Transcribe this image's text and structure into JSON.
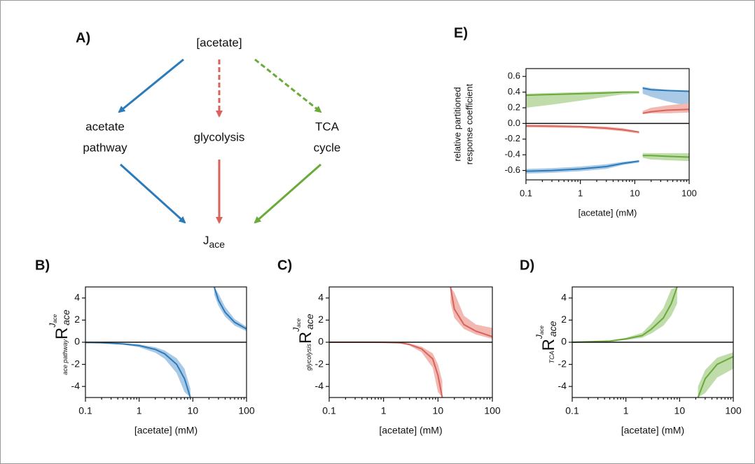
{
  "diagram": {
    "panel": "A)",
    "nodes": [
      {
        "label": "[acetate]"
      },
      {
        "lines": [
          "acetate",
          "pathway"
        ]
      },
      {
        "label": "glycolysis"
      },
      {
        "lines": [
          "TCA",
          "cycle"
        ]
      },
      {
        "label": "J",
        "subscript": "ace"
      }
    ]
  },
  "chart_data": [
    {
      "type": "line",
      "panel": "E)",
      "xscale": "log",
      "xlim": [
        0.1,
        100
      ],
      "xticks": [
        0.1,
        1,
        10,
        100
      ],
      "ylim": [
        -0.72,
        0.7
      ],
      "yticks": [
        -0.6,
        -0.4,
        -0.2,
        {
          "value": 0,
          "label": "0.0"
        },
        0.2,
        0.4,
        0.6
      ],
      "xlabel": "[acetate] (mM)",
      "ylabel": [
        "relative partitioned",
        "response coefficient"
      ],
      "zero_line": true,
      "x": [
        0.1,
        0.3,
        1,
        3,
        6,
        12,
        13,
        14,
        20,
        40,
        100
      ],
      "series": [
        {
          "color": "#2b7bba",
          "band_color": "#a9c9e6",
          "values": [
            -0.61,
            -0.6,
            -0.58,
            -0.55,
            -0.51,
            -0.48,
            null,
            0.45,
            0.43,
            0.42,
            0.41
          ],
          "lower": [
            -0.64,
            -0.63,
            -0.61,
            -0.58,
            -0.53,
            -0.5,
            null,
            0.38,
            0.34,
            0.28,
            0.22
          ],
          "upper": [
            -0.58,
            -0.57,
            -0.55,
            -0.52,
            -0.49,
            -0.47,
            null,
            0.47,
            0.45,
            0.43,
            0.42
          ]
        },
        {
          "color": "#d8635a",
          "band_color": "#f2b8b2",
          "values": [
            -0.03,
            -0.035,
            -0.04,
            -0.06,
            -0.08,
            -0.11,
            null,
            0.13,
            0.15,
            0.17,
            0.18
          ],
          "lower": [
            -0.05,
            -0.055,
            -0.06,
            -0.08,
            -0.1,
            -0.13,
            null,
            0.12,
            0.13,
            0.13,
            0.14
          ],
          "upper": [
            -0.02,
            -0.02,
            -0.03,
            -0.04,
            -0.06,
            -0.1,
            null,
            0.16,
            0.2,
            0.23,
            0.26
          ]
        },
        {
          "color": "#6aaa3a",
          "band_color": "#bfdcaa",
          "values": [
            0.36,
            0.37,
            0.38,
            0.39,
            0.4,
            0.4,
            null,
            -0.41,
            -0.41,
            -0.42,
            -0.43
          ],
          "lower": [
            0.2,
            0.24,
            0.29,
            0.34,
            0.37,
            0.38,
            null,
            -0.44,
            -0.46,
            -0.47,
            -0.48
          ],
          "upper": [
            0.38,
            0.39,
            0.4,
            0.41,
            0.41,
            0.41,
            null,
            -0.38,
            -0.38,
            -0.38,
            -0.38
          ]
        }
      ]
    },
    {
      "type": "line",
      "panel": "B)",
      "xscale": "log",
      "xlim": [
        0.1,
        100
      ],
      "xticks": [
        0.1,
        1,
        10,
        100
      ],
      "ylim": [
        -5,
        5
      ],
      "yticks": [
        -4,
        -2,
        0,
        2,
        4
      ],
      "xlabel": "[acetate] (mM)",
      "zero_line": true,
      "ylabel": {
        "prefix": "ace pathway",
        "main": "R",
        "sup": "J",
        "sup_sub": "ace",
        "sub": "ace"
      },
      "x": [
        0.1,
        0.2,
        0.5,
        1,
        2,
        3,
        5,
        7,
        9,
        12,
        25,
        30,
        40,
        60,
        100
      ],
      "series": [
        {
          "color": "#2b7bba",
          "band_color": "#a9c9e6",
          "values": [
            -0.02,
            -0.05,
            -0.15,
            -0.3,
            -0.65,
            -1.05,
            -2.0,
            -3.3,
            -5,
            null,
            5,
            3.8,
            2.7,
            1.8,
            1.2
          ],
          "lower": [
            -0.03,
            -0.08,
            -0.22,
            -0.45,
            -0.95,
            -1.5,
            -2.8,
            -4.5,
            -5,
            null,
            4.3,
            3.3,
            2.3,
            1.5,
            1.0
          ],
          "upper": [
            -0.01,
            -0.03,
            -0.1,
            -0.2,
            -0.45,
            -0.75,
            -1.45,
            -2.4,
            -4.2,
            null,
            5,
            4.4,
            3.2,
            2.1,
            1.4
          ]
        }
      ]
    },
    {
      "type": "line",
      "panel": "C)",
      "xscale": "log",
      "xlim": [
        0.1,
        100
      ],
      "xticks": [
        0.1,
        1,
        10,
        100
      ],
      "ylim": [
        -5,
        5
      ],
      "yticks": [
        -4,
        -2,
        0,
        2,
        4
      ],
      "xlabel": "[acetate] (mM)",
      "zero_line": true,
      "ylabel": {
        "prefix": "glycolysis",
        "main": "R",
        "sup": "J",
        "sup_sub": "ace",
        "sub": "ace"
      },
      "x": [
        0.1,
        0.5,
        1,
        2,
        3,
        5,
        8,
        10,
        12,
        15,
        17,
        20,
        30,
        50,
        100
      ],
      "series": [
        {
          "color": "#d8635a",
          "band_color": "#f2b8b2",
          "values": [
            0,
            0,
            -0.01,
            -0.05,
            -0.2,
            -0.6,
            -1.5,
            -3,
            -5,
            null,
            5,
            3,
            1.6,
            1.0,
            0.5
          ],
          "lower": [
            0,
            -0.01,
            -0.02,
            -0.08,
            -0.3,
            -0.9,
            -2.3,
            -4.5,
            -5,
            null,
            3.6,
            2.2,
            1.2,
            0.7,
            0.3
          ],
          "upper": [
            0,
            0,
            0,
            -0.03,
            -0.12,
            -0.4,
            -1.0,
            -2.0,
            -3.5,
            null,
            5,
            4.5,
            2.4,
            1.6,
            1.3
          ]
        }
      ]
    },
    {
      "type": "line",
      "panel": "D)",
      "xscale": "log",
      "xlim": [
        0.1,
        100
      ],
      "xticks": [
        0.1,
        1,
        10,
        100
      ],
      "ylim": [
        -5,
        5
      ],
      "yticks": [
        -4,
        -2,
        0,
        2,
        4
      ],
      "xlabel": "[acetate] (mM)",
      "zero_line": true,
      "ylabel": {
        "prefix": "TCA",
        "main": "R",
        "sup": "J",
        "sup_sub": "ace",
        "sub": "ace"
      },
      "x": [
        0.1,
        0.5,
        1,
        2,
        3,
        5,
        7,
        9,
        15,
        22,
        30,
        50,
        100
      ],
      "series": [
        {
          "color": "#6aaa3a",
          "band_color": "#bfdcaa",
          "values": [
            0,
            0.1,
            0.3,
            0.6,
            1.2,
            2.2,
            3.5,
            5,
            null,
            -5,
            -3.3,
            -2.0,
            -1.3
          ],
          "lower": [
            0,
            0.05,
            0.2,
            0.4,
            0.8,
            1.5,
            2.4,
            3.5,
            null,
            -5,
            -4.6,
            -3.2,
            -2.4
          ],
          "upper": [
            0,
            0.15,
            0.4,
            0.85,
            1.7,
            3.1,
            4.8,
            5,
            null,
            -4,
            -2.5,
            -1.4,
            -0.9
          ]
        }
      ]
    }
  ]
}
